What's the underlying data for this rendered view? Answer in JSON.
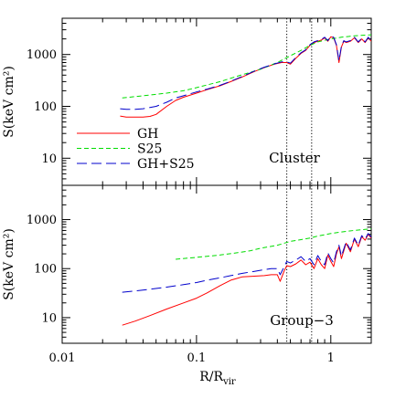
{
  "chart_data": {
    "type": "line",
    "xaxis": {
      "label_main": "R/R",
      "label_sub": "vir",
      "scale": "log",
      "xlim": [
        0.01,
        2.0
      ],
      "major_ticks": [
        0.01,
        0.1,
        1
      ],
      "tick_labels": [
        "0.01",
        "0.1",
        "1"
      ]
    },
    "vlines": [
      0.47,
      0.72
    ],
    "legend": {
      "placement": "bottom-left (top panel)",
      "entries": [
        {
          "name": "GH",
          "color": "#ff0000",
          "dash": "solid"
        },
        {
          "name": "S25",
          "color": "#00dd00",
          "dash": "short-dash"
        },
        {
          "name": "GH+S25",
          "color": "#0000cc",
          "dash": "long-dash"
        }
      ]
    },
    "panels": [
      {
        "id": "cluster",
        "label": "Cluster",
        "ylabel": "S(keV cm²)",
        "yscale": "log",
        "ylim": [
          3,
          5000
        ],
        "yticks": [
          10,
          100,
          1000
        ],
        "ytick_labels": [
          "10",
          "100",
          "1000"
        ],
        "series": [
          {
            "name": "GH",
            "color": "#ff0000",
            "dash": "solid",
            "x": [
              0.027,
              0.03,
              0.035,
              0.04,
              0.045,
              0.05,
              0.06,
              0.07,
              0.08,
              0.1,
              0.12,
              0.15,
              0.18,
              0.22,
              0.27,
              0.32,
              0.38,
              0.43,
              0.47,
              0.5,
              0.55,
              0.6,
              0.65,
              0.7,
              0.75,
              0.8,
              0.85,
              0.9,
              0.95,
              1.0,
              1.05,
              1.1,
              1.15,
              1.2,
              1.25,
              1.3,
              1.4,
              1.5,
              1.6,
              1.7,
              1.8,
              1.9,
              2.0
            ],
            "y": [
              65,
              62,
              62,
              62,
              64,
              70,
              100,
              130,
              150,
              180,
              210,
              250,
              300,
              370,
              470,
              560,
              650,
              700,
              700,
              650,
              850,
              1050,
              1200,
              1500,
              1700,
              1800,
              1900,
              2100,
              1800,
              2200,
              2100,
              1500,
              700,
              1400,
              1800,
              1700,
              1800,
              2100,
              1700,
              2000,
              1700,
              2100,
              1800
            ]
          },
          {
            "name": "S25",
            "color": "#00dd00",
            "dash": "short-dash",
            "x": [
              0.028,
              0.04,
              0.06,
              0.08,
              0.1,
              0.15,
              0.2,
              0.3,
              0.4,
              0.5,
              0.6,
              0.7,
              0.8,
              1.0,
              1.2,
              1.5,
              2.0
            ],
            "y": [
              145,
              160,
              180,
              200,
              230,
              300,
              380,
              520,
              700,
              950,
              1200,
              1500,
              1750,
              2000,
              2150,
              2300,
              2400
            ]
          },
          {
            "name": "GH+S25",
            "color": "#0000cc",
            "dash": "long-dash",
            "x": [
              0.027,
              0.03,
              0.035,
              0.04,
              0.05,
              0.06,
              0.07,
              0.08,
              0.1,
              0.12,
              0.15,
              0.18,
              0.22,
              0.27,
              0.32,
              0.38,
              0.43,
              0.47,
              0.5,
              0.55,
              0.6,
              0.65,
              0.7,
              0.75,
              0.8,
              0.85,
              0.9,
              0.95,
              1.0,
              1.05,
              1.1,
              1.15,
              1.2,
              1.25,
              1.3,
              1.4,
              1.5,
              1.6,
              1.7,
              1.8,
              1.9,
              2.0
            ],
            "y": [
              90,
              88,
              88,
              90,
              100,
              120,
              145,
              160,
              190,
              215,
              255,
              305,
              380,
              480,
              570,
              660,
              720,
              720,
              680,
              880,
              1080,
              1230,
              1550,
              1750,
              1850,
              1950,
              2150,
              1850,
              2250,
              2150,
              1550,
              760,
              1450,
              1850,
              1750,
              1850,
              2150,
              1750,
              2050,
              1750,
              2150,
              1850
            ]
          }
        ]
      },
      {
        "id": "group-3",
        "label": "Group−3",
        "ylabel": "S(keV cm²)",
        "yscale": "log",
        "ylim": [
          3,
          5000
        ],
        "yticks": [
          10,
          100,
          1000
        ],
        "ytick_labels": [
          "10",
          "100",
          "1000"
        ],
        "series": [
          {
            "name": "GH",
            "color": "#ff0000",
            "dash": "solid",
            "x": [
              0.028,
              0.035,
              0.045,
              0.06,
              0.08,
              0.1,
              0.12,
              0.15,
              0.18,
              0.22,
              0.27,
              0.32,
              0.36,
              0.4,
              0.42,
              0.45,
              0.47,
              0.5,
              0.55,
              0.6,
              0.65,
              0.7,
              0.75,
              0.8,
              0.85,
              0.9,
              0.95,
              1.0,
              1.05,
              1.1,
              1.15,
              1.2,
              1.3,
              1.4,
              1.5,
              1.6,
              1.7,
              1.8,
              1.9,
              2.0
            ],
            "y": [
              7,
              8.5,
              11,
              15,
              20,
              25,
              32,
              45,
              58,
              68,
              70,
              72,
              75,
              75,
              55,
              90,
              115,
              110,
              125,
              150,
              120,
              135,
              100,
              160,
              120,
              100,
              190,
              140,
              110,
              200,
              280,
              160,
              330,
              220,
              400,
              280,
              450,
              380,
              500,
              420
            ]
          },
          {
            "name": "S25",
            "color": "#00dd00",
            "dash": "short-dash",
            "x": [
              0.07,
              0.1,
              0.15,
              0.2,
              0.25,
              0.3,
              0.4,
              0.5,
              0.6,
              0.7,
              0.8,
              1.0,
              1.2,
              1.5,
              1.8,
              2.0
            ],
            "y": [
              155,
              170,
              190,
              210,
              230,
              260,
              300,
              360,
              390,
              420,
              460,
              520,
              560,
              600,
              630,
              650
            ]
          },
          {
            "name": "GH+S25",
            "color": "#0000cc",
            "dash": "long-dash",
            "x": [
              0.028,
              0.035,
              0.045,
              0.06,
              0.08,
              0.1,
              0.12,
              0.15,
              0.18,
              0.22,
              0.27,
              0.32,
              0.36,
              0.4,
              0.42,
              0.45,
              0.47,
              0.5,
              0.55,
              0.6,
              0.65,
              0.7,
              0.75,
              0.8,
              0.85,
              0.9,
              0.95,
              1.0,
              1.05,
              1.1,
              1.15,
              1.2,
              1.3,
              1.4,
              1.5,
              1.6,
              1.7,
              1.8,
              1.9,
              2.0
            ],
            "y": [
              33,
              35,
              38,
              42,
              47,
              52,
              58,
              65,
              72,
              80,
              88,
              95,
              100,
              100,
              75,
              110,
              140,
              130,
              150,
              175,
              140,
              160,
              120,
              185,
              140,
              120,
              210,
              160,
              130,
              220,
              300,
              180,
              350,
              240,
              420,
              300,
              470,
              400,
              520,
              440
            ]
          }
        ]
      }
    ]
  }
}
